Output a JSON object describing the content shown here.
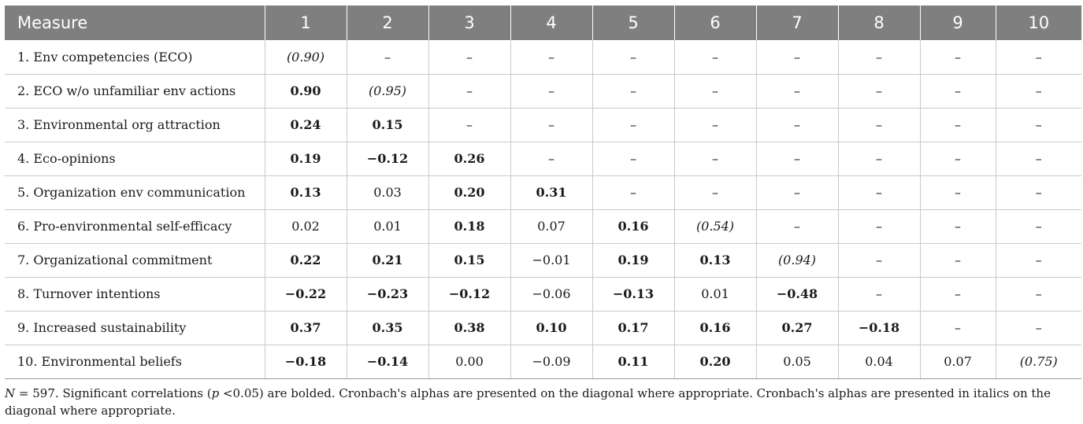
{
  "table": {
    "headers": [
      "Measure",
      "1",
      "2",
      "3",
      "4",
      "5",
      "6",
      "7",
      "8",
      "9",
      "10"
    ],
    "rows": [
      {
        "label": "1. Env competencies (ECO)",
        "cells": [
          {
            "v": "(0.90)",
            "s": "i"
          },
          {
            "v": "–"
          },
          {
            "v": "–"
          },
          {
            "v": "–"
          },
          {
            "v": "–"
          },
          {
            "v": "–"
          },
          {
            "v": "–"
          },
          {
            "v": "–"
          },
          {
            "v": "–"
          },
          {
            "v": "–"
          }
        ]
      },
      {
        "label": "2. ECO w/o unfamiliar env actions",
        "cells": [
          {
            "v": "0.90",
            "s": "b"
          },
          {
            "v": "(0.95)",
            "s": "i"
          },
          {
            "v": "–"
          },
          {
            "v": "–"
          },
          {
            "v": "–"
          },
          {
            "v": "–"
          },
          {
            "v": "–"
          },
          {
            "v": "–"
          },
          {
            "v": "–"
          },
          {
            "v": "–"
          }
        ]
      },
      {
        "label": "3. Environmental org attraction",
        "cells": [
          {
            "v": "0.24",
            "s": "b"
          },
          {
            "v": "0.15",
            "s": "b"
          },
          {
            "v": "–"
          },
          {
            "v": "–"
          },
          {
            "v": "–"
          },
          {
            "v": "–"
          },
          {
            "v": "–"
          },
          {
            "v": "–"
          },
          {
            "v": "–"
          },
          {
            "v": "–"
          }
        ]
      },
      {
        "label": "4. Eco-opinions",
        "cells": [
          {
            "v": "0.19",
            "s": "b"
          },
          {
            "v": "−0.12",
            "s": "b"
          },
          {
            "v": "0.26",
            "s": "b"
          },
          {
            "v": "–"
          },
          {
            "v": "–"
          },
          {
            "v": "–"
          },
          {
            "v": "–"
          },
          {
            "v": "–"
          },
          {
            "v": "–"
          },
          {
            "v": "–"
          }
        ]
      },
      {
        "label": "5. Organization env communication",
        "cells": [
          {
            "v": "0.13",
            "s": "b"
          },
          {
            "v": "0.03"
          },
          {
            "v": "0.20",
            "s": "b"
          },
          {
            "v": "0.31",
            "s": "b"
          },
          {
            "v": "–"
          },
          {
            "v": "–"
          },
          {
            "v": "–"
          },
          {
            "v": "–"
          },
          {
            "v": "–"
          },
          {
            "v": "–"
          }
        ]
      },
      {
        "label": "6. Pro-environmental self-efficacy",
        "cells": [
          {
            "v": "0.02"
          },
          {
            "v": "0.01"
          },
          {
            "v": "0.18",
            "s": "b"
          },
          {
            "v": "0.07"
          },
          {
            "v": "0.16",
            "s": "b"
          },
          {
            "v": "(0.54)",
            "s": "i"
          },
          {
            "v": "–"
          },
          {
            "v": "–"
          },
          {
            "v": "–"
          },
          {
            "v": "–"
          }
        ]
      },
      {
        "label": "7. Organizational commitment",
        "cells": [
          {
            "v": "0.22",
            "s": "b"
          },
          {
            "v": "0.21",
            "s": "b"
          },
          {
            "v": "0.15",
            "s": "b"
          },
          {
            "v": "−0.01"
          },
          {
            "v": "0.19",
            "s": "b"
          },
          {
            "v": "0.13",
            "s": "b"
          },
          {
            "v": "(0.94)",
            "s": "i"
          },
          {
            "v": "–"
          },
          {
            "v": "–"
          },
          {
            "v": "–"
          }
        ]
      },
      {
        "label": "8. Turnover intentions",
        "cells": [
          {
            "v": "−0.22",
            "s": "b"
          },
          {
            "v": "−0.23",
            "s": "b"
          },
          {
            "v": "−0.12",
            "s": "b"
          },
          {
            "v": "−0.06"
          },
          {
            "v": "−0.13",
            "s": "b"
          },
          {
            "v": "0.01"
          },
          {
            "v": "−0.48",
            "s": "b"
          },
          {
            "v": "–"
          },
          {
            "v": "–"
          },
          {
            "v": "–"
          }
        ]
      },
      {
        "label": "9. Increased sustainability",
        "cells": [
          {
            "v": "0.37",
            "s": "b"
          },
          {
            "v": "0.35",
            "s": "b"
          },
          {
            "v": "0.38",
            "s": "b"
          },
          {
            "v": "0.10",
            "s": "b"
          },
          {
            "v": "0.17",
            "s": "b"
          },
          {
            "v": "0.16",
            "s": "b"
          },
          {
            "v": "0.27",
            "s": "b"
          },
          {
            "v": "−0.18",
            "s": "b"
          },
          {
            "v": "–"
          },
          {
            "v": "–"
          }
        ]
      },
      {
        "label": "10. Environmental beliefs",
        "cells": [
          {
            "v": "−0.18",
            "s": "b"
          },
          {
            "v": "−0.14",
            "s": "b"
          },
          {
            "v": "0.00"
          },
          {
            "v": "−0.09"
          },
          {
            "v": "0.11",
            "s": "b"
          },
          {
            "v": "0.20",
            "s": "b"
          },
          {
            "v": "0.05"
          },
          {
            "v": "0.04"
          },
          {
            "v": "0.07"
          },
          {
            "v": "(0.75)",
            "s": "i"
          }
        ]
      }
    ]
  },
  "note": {
    "n_symbol": "N",
    "n_value": " = 597. Significant correlations (",
    "p_symbol": "p",
    "rest": " <0.05) are bolded. Cronbach's alphas are presented on the diagonal where appropriate. Cronbach's alphas are presented in italics on the diagonal where appropriate."
  },
  "colors": {
    "header_bg": "#7f7f7f",
    "header_text": "#ffffff",
    "grid_line": "#c9c9c9"
  }
}
